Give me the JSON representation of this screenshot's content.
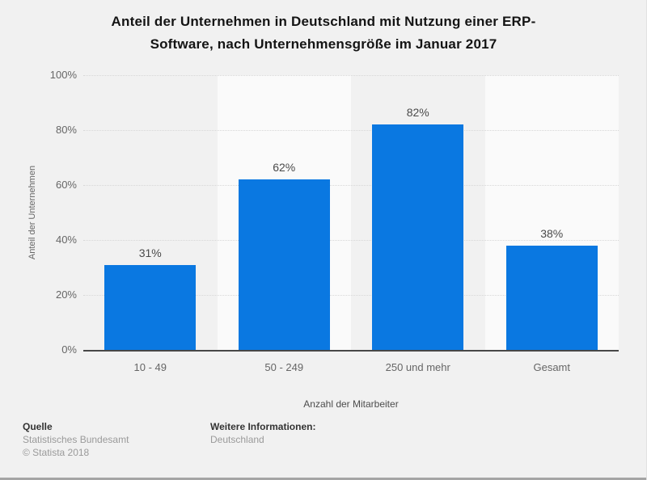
{
  "title": "Anteil der Unternehmen in Deutschland mit Nutzung einer ERP-Software, nach Unternehmensgröße im Januar 2017",
  "title_lines": [
    "Anteil der Unternehmen in Deutschland mit Nutzung einer ERP-",
    "Software, nach Unternehmensgröße im Januar 2017"
  ],
  "chart_data": {
    "type": "bar",
    "title": "Anteil der Unternehmen in Deutschland mit Nutzung einer ERP-Software, nach Unternehmensgröße im Januar 2017",
    "categories": [
      "10 - 49",
      "50 - 249",
      "250 und mehr",
      "Gesamt"
    ],
    "values": [
      31,
      62,
      82,
      38
    ],
    "value_labels": [
      "31%",
      "62%",
      "82%",
      "38%"
    ],
    "xlabel": "Anzahl der Mitarbeiter",
    "ylabel": "Anteil der Unternehmen",
    "ylim": [
      0,
      100
    ],
    "ytick_labels": [
      "100%",
      "80%",
      "60%",
      "40%",
      "20%",
      "0%"
    ],
    "grid": "horizontal-dotted",
    "legend": "none",
    "bar_color": "#0a78e1",
    "band_color": "#fafafa",
    "gridline_color": "#d7d7d7",
    "axis_color": "#474747"
  },
  "footer": {
    "source_label": "Quelle",
    "source_name": "Statistisches Bundesamt",
    "copyright": "© Statista 2018",
    "info_label": "Weitere Informationen:",
    "info_value": "Deutschland"
  }
}
